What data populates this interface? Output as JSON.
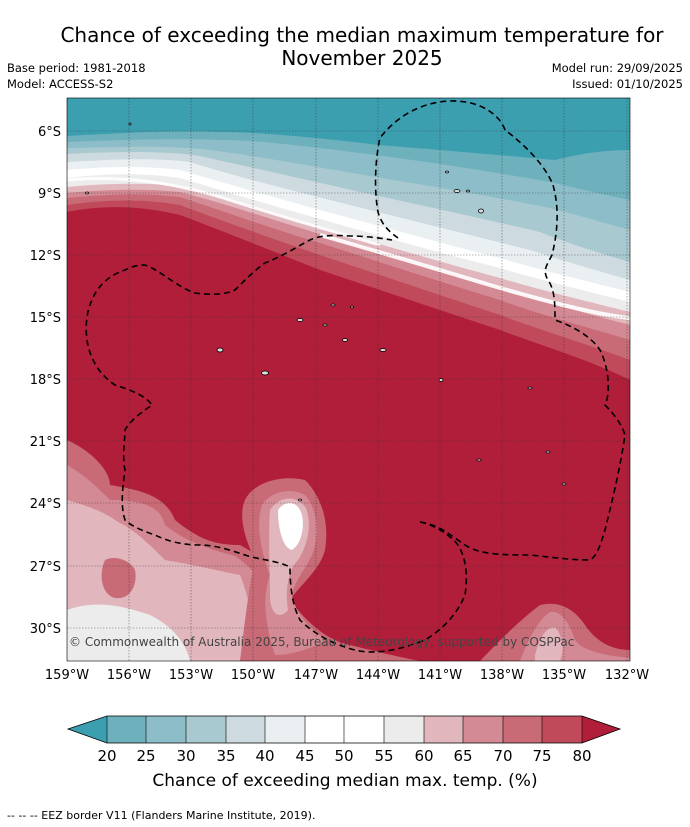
{
  "header": {
    "title_line1": "Chance of exceeding the median maximum temperature for",
    "title_line2": "November 2025",
    "base_period": "Base period: 1981-2018",
    "model": "Model: ACCESS-S2",
    "model_run": "Model run: 29/09/2025",
    "issued": "Issued: 01/10/2025"
  },
  "map": {
    "lat_labels": [
      "6°S",
      "9°S",
      "12°S",
      "15°S",
      "18°S",
      "21°S",
      "24°S",
      "27°S",
      "30°S"
    ],
    "lon_labels": [
      "159°W",
      "156°W",
      "153°W",
      "150°W",
      "147°W",
      "144°W",
      "141°W",
      "138°W",
      "135°W",
      "132°W"
    ],
    "copyright": "© Commonwealth of Australia 2025, Bureau of Meteorology, supported by COSPPac"
  },
  "colorbar": {
    "ticks": [
      "20",
      "25",
      "30",
      "35",
      "40",
      "45",
      "50",
      "55",
      "60",
      "65",
      "70",
      "75",
      "80"
    ],
    "colors": {
      "below20": "#3c9fb0",
      "b20_25": "#6eb1bd",
      "b25_30": "#8cbdc8",
      "b30_35": "#a8c9cf",
      "b35_40": "#cddadf",
      "b40_45": "#eaf0f2",
      "b45_50": "#ffffff",
      "b50_55": "#ffffff",
      "b55_60": "#ececec",
      "b60_65": "#e2b6bd",
      "b65_70": "#d48a94",
      "b70_75": "#c86b77",
      "b75_80": "#c04a5a",
      "above80": "#b01e3a"
    },
    "label": "Chance of exceeding median max. temp. (%)"
  },
  "footer": {
    "legend": "--  --  -- EEZ border V11 (Flanders Marine Institute, 2019)."
  }
}
